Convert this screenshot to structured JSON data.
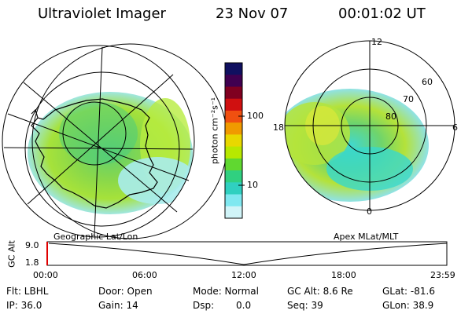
{
  "header": {
    "title": "Ultraviolet Imager",
    "date": "23 Nov 07",
    "time": "00:01:02 UT"
  },
  "left_panel": {
    "caption": "Geographic Lat/Lon"
  },
  "right_panel": {
    "caption": "Apex MLat/MLT",
    "mlt_labels": {
      "top": "12",
      "left": "18",
      "right": "6",
      "bottom": "0"
    },
    "lat_labels": [
      "60",
      "70",
      "80"
    ]
  },
  "colorbar": {
    "unit_label": "photon cm⁻²s⁻¹",
    "ticks": [
      "100",
      "10"
    ],
    "colors": [
      "#101060",
      "#400050",
      "#800020",
      "#d01010",
      "#f05010",
      "#f09a00",
      "#e8d800",
      "#b8e800",
      "#60d830",
      "#30d080",
      "#30d0c0",
      "#80e8f0",
      "#d0f4f8"
    ]
  },
  "alt_strip": {
    "ylabel": "GC Alt",
    "yticks": [
      "9.0",
      "1.8"
    ],
    "xticks": [
      "00:00",
      "06:00",
      "12:00",
      "18:00",
      "23:59"
    ]
  },
  "info": {
    "flt": "Flt: LBHL",
    "ip": "IP: 36.0",
    "door": "Door: Open",
    "gain": "Gain: 14",
    "mode": "Mode: Normal",
    "dsp_label": "Dsp:",
    "dsp_value": "0.0",
    "gc_alt": "GC Alt: 8.6 Re",
    "seq": "Seq: 39",
    "glat": "GLat: -81.6",
    "glon": "GLon: 38.9"
  }
}
